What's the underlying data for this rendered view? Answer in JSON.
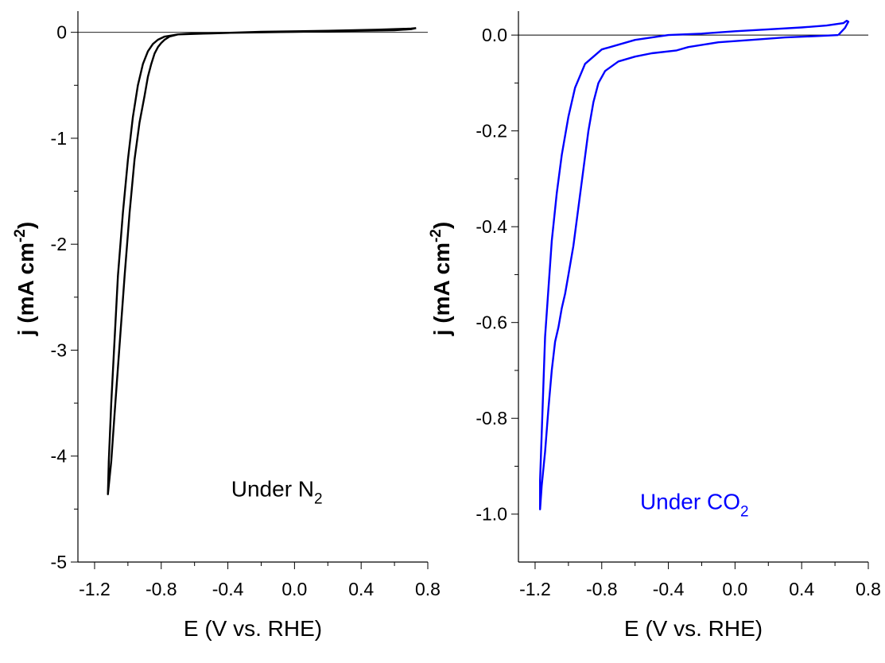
{
  "chart_data": [
    {
      "type": "line",
      "xlabel": "E (V vs. RHE)",
      "ylabel": {
        "prefix": "j (mA cm",
        "sup": "-2",
        "suffix": ")"
      },
      "xlim": [
        -1.3,
        0.8
      ],
      "ylim": [
        -5,
        0.2
      ],
      "xticks": [
        "-1.2",
        "-0.8",
        "-0.4",
        "0.0",
        "0.4",
        "0.8"
      ],
      "xtick_values": [
        -1.2,
        -0.8,
        -0.4,
        0.0,
        0.4,
        0.8
      ],
      "yticks": [
        "0",
        "-1",
        "-2",
        "-3",
        "-4",
        "-5"
      ],
      "ytick_values": [
        0,
        -1,
        -2,
        -3,
        -4,
        -5
      ],
      "y_minor_step": 0.5,
      "zero_line": true,
      "color": "#000000",
      "annotation": {
        "text": "Under N",
        "sub": "2",
        "x": -0.38,
        "y": -4.38
      },
      "series": [
        {
          "values": [
            [
              0.73,
              0.04
            ],
            [
              0.7,
              0.03
            ],
            [
              0.6,
              0.02
            ],
            [
              0.4,
              0.015
            ],
            [
              0.2,
              0.01
            ],
            [
              0.0,
              0.005
            ],
            [
              -0.2,
              0.0
            ],
            [
              -0.4,
              -0.005
            ],
            [
              -0.6,
              -0.01
            ],
            [
              -0.7,
              -0.02
            ],
            [
              -0.75,
              -0.04
            ],
            [
              -0.78,
              -0.07
            ],
            [
              -0.8,
              -0.1
            ],
            [
              -0.82,
              -0.14
            ],
            [
              -0.84,
              -0.2
            ],
            [
              -0.86,
              -0.3
            ],
            [
              -0.88,
              -0.42
            ],
            [
              -0.9,
              -0.6
            ],
            [
              -0.93,
              -0.85
            ],
            [
              -0.96,
              -1.2
            ],
            [
              -0.99,
              -1.7
            ],
            [
              -1.02,
              -2.3
            ],
            [
              -1.05,
              -2.95
            ],
            [
              -1.08,
              -3.6
            ],
            [
              -1.1,
              -4.05
            ],
            [
              -1.12,
              -4.36
            ],
            [
              -1.115,
              -4.05
            ],
            [
              -1.1,
              -3.5
            ],
            [
              -1.08,
              -2.9
            ],
            [
              -1.06,
              -2.3
            ],
            [
              -1.03,
              -1.7
            ],
            [
              -1.0,
              -1.2
            ],
            [
              -0.97,
              -0.8
            ],
            [
              -0.94,
              -0.5
            ],
            [
              -0.91,
              -0.3
            ],
            [
              -0.88,
              -0.18
            ],
            [
              -0.85,
              -0.11
            ],
            [
              -0.82,
              -0.07
            ],
            [
              -0.78,
              -0.04
            ],
            [
              -0.7,
              -0.02
            ],
            [
              -0.5,
              -0.01
            ],
            [
              -0.2,
              0.005
            ],
            [
              0.2,
              0.015
            ],
            [
              0.5,
              0.025
            ],
            [
              0.7,
              0.035
            ],
            [
              0.73,
              0.04
            ]
          ]
        }
      ]
    },
    {
      "type": "line",
      "xlabel": "E (V vs. RHE)",
      "ylabel": {
        "prefix": "j (mA cm",
        "sup": "-2",
        "suffix": ")"
      },
      "xlim": [
        -1.3,
        0.8
      ],
      "ylim": [
        -1.1,
        0.05
      ],
      "xticks": [
        "-1.2",
        "-0.8",
        "-0.4",
        "0.0",
        "0.4",
        "0.8"
      ],
      "xtick_values": [
        -1.2,
        -0.8,
        -0.4,
        0.0,
        0.4,
        0.8
      ],
      "yticks": [
        "0.0",
        "-0.2",
        "-0.4",
        "-0.6",
        "-0.8",
        "-1.0"
      ],
      "ytick_values": [
        0.0,
        -0.2,
        -0.4,
        -0.6,
        -0.8,
        -1.0
      ],
      "y_minor_step": 0.1,
      "zero_line": true,
      "color": "#0000ff",
      "annotation": {
        "text": "Under CO",
        "sub": "2",
        "x": -0.57,
        "y": -0.99
      },
      "series": [
        {
          "values": [
            [
              0.62,
              0.0
            ],
            [
              0.5,
              -0.002
            ],
            [
              0.3,
              -0.005
            ],
            [
              0.1,
              -0.01
            ],
            [
              -0.1,
              -0.015
            ],
            [
              -0.28,
              -0.025
            ],
            [
              -0.35,
              -0.032
            ],
            [
              -0.5,
              -0.038
            ],
            [
              -0.6,
              -0.045
            ],
            [
              -0.7,
              -0.055
            ],
            [
              -0.78,
              -0.075
            ],
            [
              -0.82,
              -0.1
            ],
            [
              -0.85,
              -0.14
            ],
            [
              -0.88,
              -0.2
            ],
            [
              -0.91,
              -0.28
            ],
            [
              -0.94,
              -0.36
            ],
            [
              -0.97,
              -0.44
            ],
            [
              -1.0,
              -0.5
            ],
            [
              -1.02,
              -0.54
            ],
            [
              -1.04,
              -0.57
            ],
            [
              -1.06,
              -0.61
            ],
            [
              -1.08,
              -0.64
            ],
            [
              -1.1,
              -0.7
            ],
            [
              -1.12,
              -0.78
            ],
            [
              -1.14,
              -0.87
            ],
            [
              -1.16,
              -0.94
            ],
            [
              -1.17,
              -0.99
            ],
            [
              -1.17,
              -0.93
            ],
            [
              -1.16,
              -0.83
            ],
            [
              -1.15,
              -0.73
            ],
            [
              -1.14,
              -0.63
            ],
            [
              -1.12,
              -0.53
            ],
            [
              -1.1,
              -0.43
            ],
            [
              -1.07,
              -0.33
            ],
            [
              -1.04,
              -0.25
            ],
            [
              -1.0,
              -0.17
            ],
            [
              -0.96,
              -0.11
            ],
            [
              -0.9,
              -0.06
            ],
            [
              -0.8,
              -0.03
            ],
            [
              -0.6,
              -0.01
            ],
            [
              -0.4,
              0.0
            ],
            [
              -0.2,
              0.003
            ],
            [
              0.0,
              0.008
            ],
            [
              0.2,
              0.012
            ],
            [
              0.4,
              0.016
            ],
            [
              0.55,
              0.02
            ],
            [
              0.65,
              0.025
            ],
            [
              0.67,
              0.03
            ],
            [
              0.68,
              0.028
            ],
            [
              0.66,
              0.015
            ],
            [
              0.62,
              0.0
            ]
          ]
        }
      ]
    }
  ]
}
